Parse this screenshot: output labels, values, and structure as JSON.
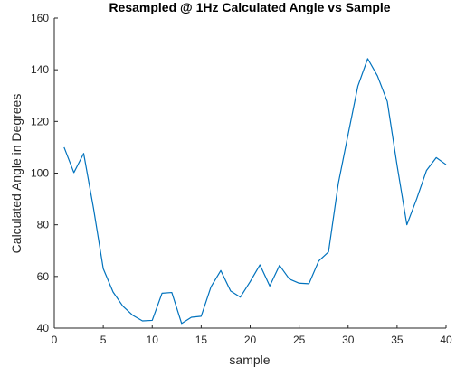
{
  "chart_data": {
    "type": "line",
    "title": "Resampled @ 1Hz Calculated Angle vs Sample",
    "xlabel": "sample",
    "ylabel": "Calculated Angle in Degrees",
    "xlim": [
      0,
      40
    ],
    "ylim": [
      40,
      160
    ],
    "xticks": [
      0,
      5,
      10,
      15,
      20,
      25,
      30,
      35,
      40
    ],
    "yticks": [
      40,
      60,
      80,
      100,
      120,
      140,
      160
    ],
    "grid": false,
    "line_color": "#0072BD",
    "series": [
      {
        "x": [
          1,
          2,
          3,
          4,
          5,
          6,
          7,
          8,
          9,
          10,
          11,
          12,
          13,
          14,
          15,
          16,
          17,
          18,
          19,
          20,
          21,
          22,
          23,
          24,
          25,
          26,
          27,
          28,
          29,
          30,
          31,
          32,
          33,
          34,
          35,
          36,
          37,
          38,
          39,
          40
        ],
        "values": [
          110,
          100.2,
          107.6,
          86.5,
          63,
          54,
          48.5,
          45,
          42.8,
          43,
          53.5,
          53.8,
          41.8,
          44.2,
          44.6,
          56,
          62.3,
          54.4,
          52,
          58,
          64.5,
          56.3,
          64.3,
          59,
          57.4,
          57.2,
          66,
          69.5,
          96,
          115,
          133.7,
          144.3,
          137.6,
          127.7,
          103,
          80,
          90,
          101,
          106,
          103.3
        ]
      }
    ]
  }
}
